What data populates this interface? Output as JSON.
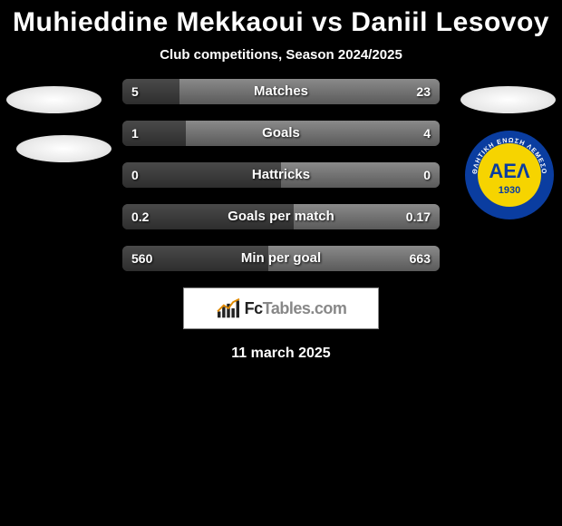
{
  "title": "Muhieddine Mekkaoui vs Daniil Lesovoy",
  "subtitle": "Club competitions, Season 2024/2025",
  "date": "11 march 2025",
  "logo": {
    "brand": "Fc",
    "rest": "Tables",
    "suffix": ".com"
  },
  "club_badge": {
    "outer_color": "#0a3da0",
    "inner_color": "#f6d400",
    "text_top": "ΑΘΛΗΤΙΚΗ ΕΝΩΣΗ ΛΕΜΕΣΟΥ",
    "center": "ΑΕΛ",
    "year": "1930"
  },
  "bars": {
    "track_bg": "#3a3a3a",
    "left_color_top": "#4a4a4a",
    "left_color_bottom": "#2e2e2e",
    "right_color_top": "#8a8a8a",
    "right_color_bottom": "#5a5a5a",
    "rows": [
      {
        "label": "Matches",
        "left_val": "5",
        "right_val": "23",
        "left_pct": 18,
        "right_pct": 82
      },
      {
        "label": "Goals",
        "left_val": "1",
        "right_val": "4",
        "left_pct": 20,
        "right_pct": 80
      },
      {
        "label": "Hattricks",
        "left_val": "0",
        "right_val": "0",
        "left_pct": 50,
        "right_pct": 50
      },
      {
        "label": "Goals per match",
        "left_val": "0.2",
        "right_val": "0.17",
        "left_pct": 54,
        "right_pct": 46
      },
      {
        "label": "Min per goal",
        "left_val": "560",
        "right_val": "663",
        "left_pct": 46,
        "right_pct": 54
      }
    ]
  }
}
